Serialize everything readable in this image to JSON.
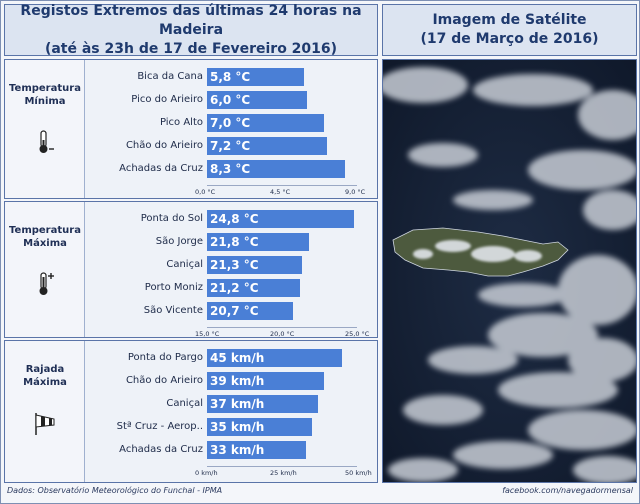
{
  "header": {
    "left_title_line1": "Registos Extremos das últimas 24 horas na Madeira",
    "left_title_line2": "(até às 23h de 17 de Fevereiro 2016)",
    "right_title_line1": "Imagem de Satélite",
    "right_title_line2": "(17 de Março de 2016)"
  },
  "footer": {
    "source": "Dados:  Observatório Meteorológico do Funchal - IPMA",
    "credit": "facebook.com/navegadormensal"
  },
  "icons": {
    "min": "thermometer-minus-icon",
    "max": "thermometer-plus-icon",
    "wind": "windsock-icon"
  },
  "colors": {
    "bar": "#4a7fd6",
    "title": "#1f3a6e"
  },
  "chart_data": [
    {
      "type": "bar",
      "orientation": "horizontal",
      "category_line1": "Temperatura",
      "category_line2": "Mínima",
      "categories": [
        "Bica da Cana",
        "Pico do Arieiro",
        "Pico Alto",
        "Chão do Arieiro",
        "Achadas da Cruz"
      ],
      "values": [
        5.8,
        6.0,
        7.0,
        7.2,
        8.3
      ],
      "labels": [
        "5,8 °C",
        "6,0 °C",
        "7,0 °C",
        "7,2 °C",
        "8,3 °C"
      ],
      "xlim": [
        0,
        9
      ],
      "ticks": [
        "0,0 °C",
        "4,5 °C",
        "9,0 °C"
      ]
    },
    {
      "type": "bar",
      "orientation": "horizontal",
      "category_line1": "Temperatura",
      "category_line2": "Máxima",
      "categories": [
        "Ponta do Sol",
        "São Jorge",
        "Caniçal",
        "Porto Moniz",
        "São Vicente"
      ],
      "values": [
        24.8,
        21.8,
        21.3,
        21.2,
        20.7
      ],
      "labels": [
        "24,8 °C",
        "21,8 °C",
        "21,3 °C",
        "21,2 °C",
        "20,7 °C"
      ],
      "xlim": [
        15,
        25
      ],
      "ticks": [
        "15,0 °C",
        "20,0 °C",
        "25,0 °C"
      ]
    },
    {
      "type": "bar",
      "orientation": "horizontal",
      "category_line1": "Rajada",
      "category_line2": "Máxima",
      "categories": [
        "Ponta do Pargo",
        "Chão do Arieiro",
        "Caniçal",
        "Stª Cruz - Aerop..",
        "Achadas da Cruz"
      ],
      "values": [
        45,
        39,
        37,
        35,
        33
      ],
      "labels": [
        "45 km/h",
        "39 km/h",
        "37 km/h",
        "35 km/h",
        "33 km/h"
      ],
      "xlim": [
        0,
        50
      ],
      "ticks": [
        "0 km/h",
        "25 km/h",
        "50 km/h"
      ]
    }
  ]
}
